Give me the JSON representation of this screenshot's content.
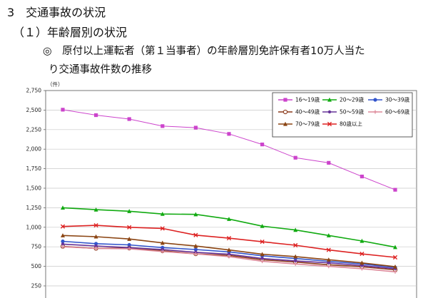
{
  "headings": {
    "section": "3　交通事故の状況",
    "subsection": "（１）年齢層別の状況",
    "desc_line1": "◎　原付以上運転者（第１当事者）の年齢層別免許保有者10万人当た",
    "desc_line2": "り交通事故件数の推移"
  },
  "chart_data": {
    "type": "line",
    "unit_label": "（件）",
    "ylim": [
      250,
      2750
    ],
    "yticks": [
      250,
      500,
      750,
      1000,
      1250,
      1500,
      1750,
      2000,
      2250,
      2500,
      2750
    ],
    "ytick_labels": [
      "250",
      "500",
      "750",
      "1,000",
      "1,250",
      "1,500",
      "1,750",
      "2,000",
      "2,250",
      "2,500",
      "2,750"
    ],
    "grid": true,
    "legend_position": "top-right",
    "x": [
      1,
      2,
      3,
      4,
      5,
      6,
      7,
      8,
      9,
      10,
      11
    ],
    "series": [
      {
        "name": "16～19歳",
        "color": "#cc44cc",
        "marker": "square",
        "values": [
          2505,
          2435,
          2385,
          2295,
          2275,
          2195,
          2060,
          1890,
          1825,
          1650,
          1480
        ]
      },
      {
        "name": "20～29歳",
        "color": "#11aa11",
        "marker": "triangle",
        "values": [
          1250,
          1225,
          1205,
          1170,
          1165,
          1105,
          1015,
          965,
          895,
          825,
          745
        ]
      },
      {
        "name": "30～39歳",
        "color": "#3355cc",
        "marker": "circle",
        "values": [
          820,
          790,
          775,
          740,
          715,
          685,
          635,
          600,
          565,
          530,
          485
        ]
      },
      {
        "name": "40～49歳",
        "color": "#8b3a1a",
        "marker": "circle-open",
        "values": [
          755,
          730,
          735,
          700,
          660,
          640,
          585,
          555,
          520,
          495,
          455
        ]
      },
      {
        "name": "50～59歳",
        "color": "#663399",
        "marker": "dot",
        "values": [
          785,
          760,
          740,
          715,
          680,
          655,
          600,
          570,
          545,
          510,
          470
        ]
      },
      {
        "name": "60～69歳",
        "color": "#dd8899",
        "marker": "plus",
        "values": [
          750,
          730,
          725,
          690,
          660,
          625,
          565,
          530,
          500,
          470,
          430
        ]
      },
      {
        "name": "70～79歳",
        "color": "#8b4513",
        "marker": "triangle",
        "values": [
          895,
          880,
          850,
          800,
          760,
          710,
          655,
          625,
          585,
          545,
          495
        ]
      },
      {
        "name": "80歳以上",
        "color": "#dd2222",
        "marker": "x",
        "values": [
          1010,
          1025,
          1000,
          985,
          900,
          860,
          815,
          770,
          710,
          660,
          615
        ]
      }
    ]
  }
}
